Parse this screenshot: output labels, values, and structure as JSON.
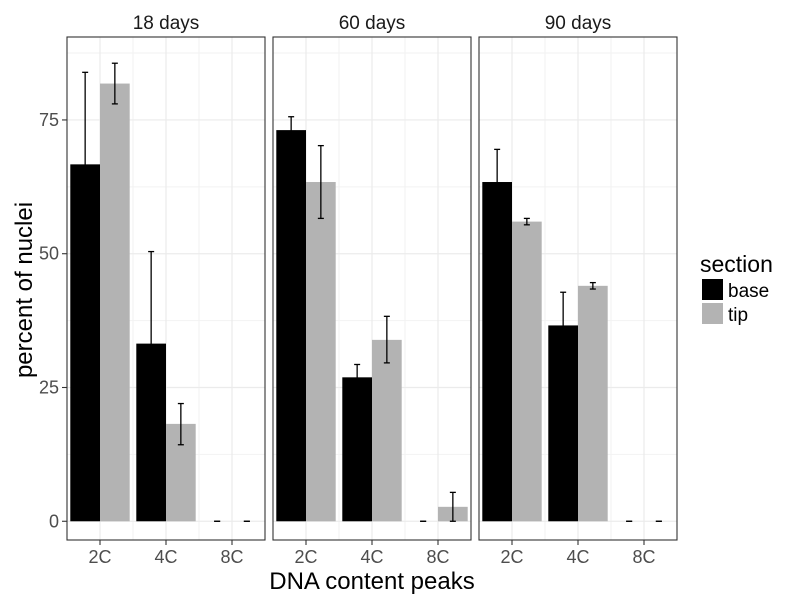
{
  "chart_data": {
    "type": "bar",
    "xlabel": "DNA content peaks",
    "ylabel": "percent of nuclei",
    "ylim": [
      -3.5,
      90.5
    ],
    "yticks": [
      0,
      25,
      50,
      75
    ],
    "categories": [
      "2C",
      "4C",
      "8C"
    ],
    "legend": {
      "title": "section",
      "placement": "right"
    },
    "series_meta": [
      {
        "name": "base",
        "color": "#000000"
      },
      {
        "name": "tip",
        "color": "#b3b3b3"
      }
    ],
    "panels": [
      {
        "title": "18 days",
        "series": [
          {
            "name": "base",
            "values": [
              66.7,
              33.2,
              0
            ],
            "err_low": [
              49.5,
              16.0,
              0
            ],
            "err_high": [
              83.9,
              50.4,
              0
            ]
          },
          {
            "name": "tip",
            "values": [
              81.8,
              18.2,
              0
            ],
            "err_low": [
              78.0,
              14.3,
              0
            ],
            "err_high": [
              85.6,
              22.0,
              0
            ]
          }
        ]
      },
      {
        "title": "60 days",
        "series": [
          {
            "name": "base",
            "values": [
              73.1,
              26.9,
              0
            ],
            "err_low": [
              70.6,
              24.4,
              0
            ],
            "err_high": [
              75.6,
              29.3,
              0
            ]
          },
          {
            "name": "tip",
            "values": [
              63.4,
              33.9,
              2.7
            ],
            "err_low": [
              56.6,
              29.6,
              0
            ],
            "err_high": [
              70.2,
              38.3,
              5.4
            ]
          }
        ]
      },
      {
        "title": "90 days",
        "series": [
          {
            "name": "base",
            "values": [
              63.4,
              36.6,
              0
            ],
            "err_low": [
              57.3,
              30.5,
              0
            ],
            "err_high": [
              69.5,
              42.8,
              0
            ]
          },
          {
            "name": "tip",
            "values": [
              56.0,
              44.0,
              0
            ],
            "err_low": [
              55.4,
              43.4,
              0
            ],
            "err_high": [
              56.6,
              44.6,
              0
            ]
          }
        ]
      }
    ]
  }
}
